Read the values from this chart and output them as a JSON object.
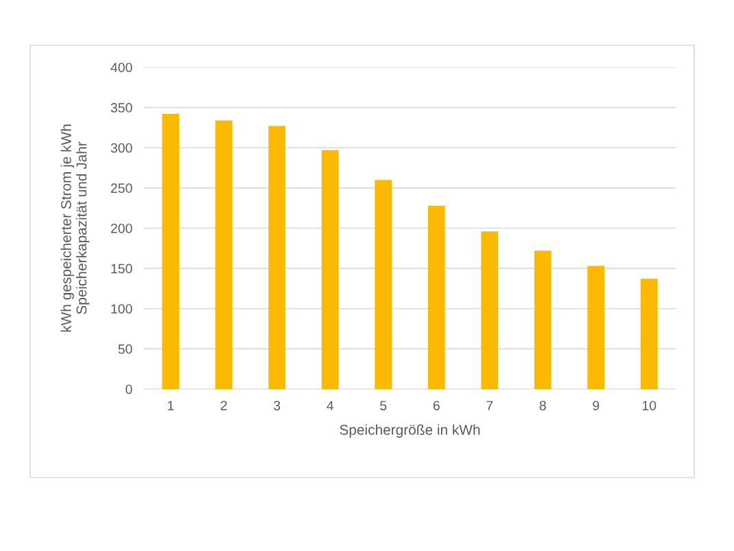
{
  "chart_data": {
    "type": "bar",
    "categories": [
      "1",
      "2",
      "3",
      "4",
      "5",
      "6",
      "7",
      "8",
      "9",
      "10"
    ],
    "values": [
      342,
      334,
      327,
      297,
      260,
      228,
      196,
      172,
      153,
      137
    ],
    "color": "#fbb900",
    "xlabel": "Speichergröße in kWh",
    "ylabel": "kWh gespeicherter Strom je kWh\nSpeicherkapazität und Jahr",
    "ylim": [
      0,
      400
    ],
    "yticks": [
      0,
      50,
      100,
      150,
      200,
      250,
      300,
      350,
      400
    ],
    "grid": "y",
    "legend": false
  }
}
